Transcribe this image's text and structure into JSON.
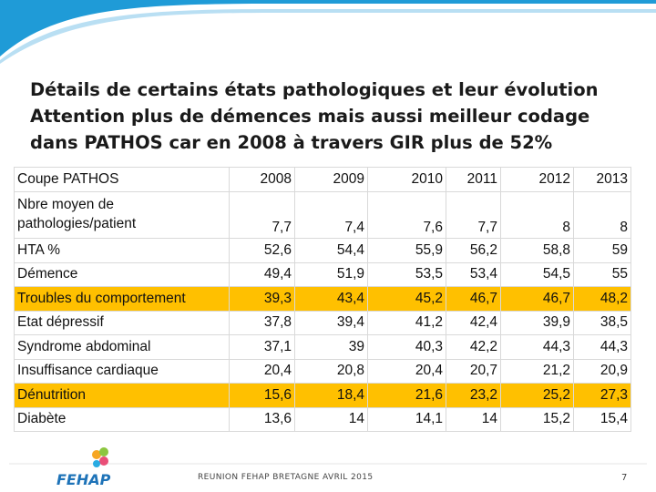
{
  "title": {
    "line1": "Détails de certains états pathologiques et leur évolution",
    "line2": "Attention plus de démences mais aussi meilleur codage",
    "line3": "dans PATHOS car en 2008 à travers GIR plus de 52%"
  },
  "table": {
    "header": [
      "Coupe PATHOS",
      "2008",
      "2009",
      "2010",
      "2011",
      "2012",
      "2013"
    ],
    "rows": [
      {
        "label": "Nbre moyen de pathologies/patient",
        "values": [
          "7,7",
          "7,4",
          "7,6",
          "7,7",
          "8",
          "8"
        ],
        "highlight": false
      },
      {
        "label": "HTA %",
        "values": [
          "52,6",
          "54,4",
          "55,9",
          "56,2",
          "58,8",
          "59"
        ],
        "highlight": false
      },
      {
        "label": "Démence",
        "values": [
          "49,4",
          "51,9",
          "53,5",
          "53,4",
          "54,5",
          "55"
        ],
        "highlight": false
      },
      {
        "label": "Troubles du comportement",
        "values": [
          "39,3",
          "43,4",
          "45,2",
          "46,7",
          "46,7",
          "48,2"
        ],
        "highlight": true
      },
      {
        "label": "Etat dépressif",
        "values": [
          "37,8",
          "39,4",
          "41,2",
          "42,4",
          "39,9",
          "38,5"
        ],
        "highlight": false
      },
      {
        "label": "Syndrome abdominal",
        "values": [
          "37,1",
          "39",
          "40,3",
          "42,2",
          "44,3",
          "44,3"
        ],
        "highlight": false
      },
      {
        "label": "Insuffisance cardiaque",
        "values": [
          "20,4",
          "20,8",
          "20,4",
          "20,7",
          "21,2",
          "20,9"
        ],
        "highlight": false
      },
      {
        "label": "Dénutrition",
        "values": [
          "15,6",
          "18,4",
          "21,6",
          "23,2",
          "25,2",
          "27,3"
        ],
        "highlight": true
      },
      {
        "label": "Diabète",
        "values": [
          "13,6",
          "14",
          "14,1",
          "14",
          "15,2",
          "15,4"
        ],
        "highlight": false
      }
    ],
    "highlight_color": "#ffc000"
  },
  "footer": {
    "logo_text": "FEHAP",
    "text": "REUNION FEHAP BRETAGNE AVRIL 2015",
    "page_number": "7"
  },
  "colors": {
    "swoosh": "#1f9bd7",
    "logo_blue": "#1e73b8"
  }
}
